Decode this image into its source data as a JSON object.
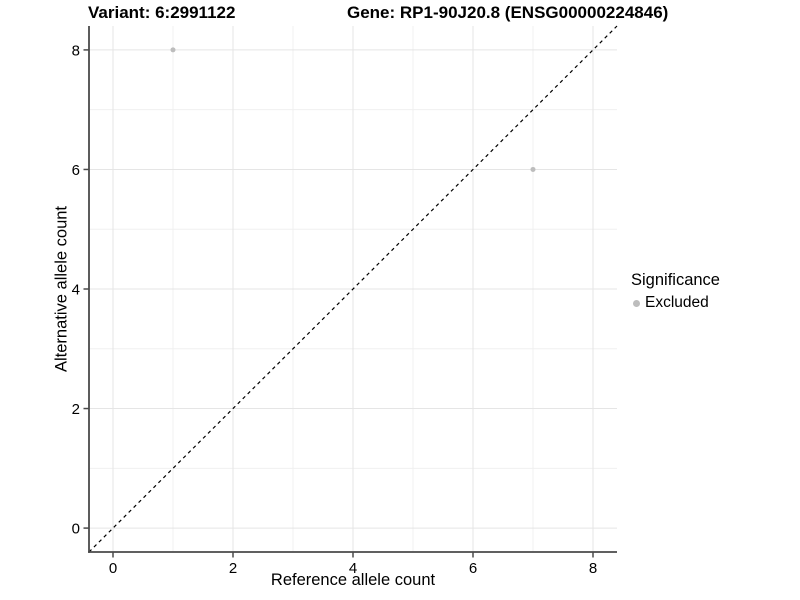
{
  "header": {
    "variant_title": "Variant: 6:2991122",
    "gene_title": "Gene: RP1-90J20.8 (ENSG00000224846)"
  },
  "chart_data": {
    "type": "scatter",
    "xlabel": "Reference allele count",
    "ylabel": "Alternative allele count",
    "x_ticks": [
      0,
      2,
      4,
      6,
      8
    ],
    "y_ticks": [
      0,
      2,
      4,
      6,
      8
    ],
    "x_minor_ticks": [
      1,
      3,
      5,
      7
    ],
    "y_minor_ticks": [
      1,
      3,
      5,
      7
    ],
    "xlim": [
      -0.4,
      8.4
    ],
    "ylim": [
      -0.4,
      8.4
    ],
    "grid": true,
    "points": [
      {
        "x": 1,
        "y": 8,
        "significance": "Excluded"
      },
      {
        "x": 7,
        "y": 6,
        "significance": "Excluded"
      }
    ],
    "identity_line": {
      "style": "dashed",
      "from": [
        -0.4,
        -0.4
      ],
      "to": [
        8.4,
        8.4
      ]
    }
  },
  "legend": {
    "title": "Significance",
    "position": "right",
    "items": [
      {
        "label": "Excluded",
        "color": "#bdbdbd"
      }
    ]
  },
  "colors": {
    "point": "#bdbdbd",
    "grid_major": "#e5e5e5",
    "grid_minor": "#f0f0f0",
    "axis_line": "#4a4a4a",
    "identity_line": "#000000",
    "background": "#ffffff",
    "text": "#000000"
  }
}
